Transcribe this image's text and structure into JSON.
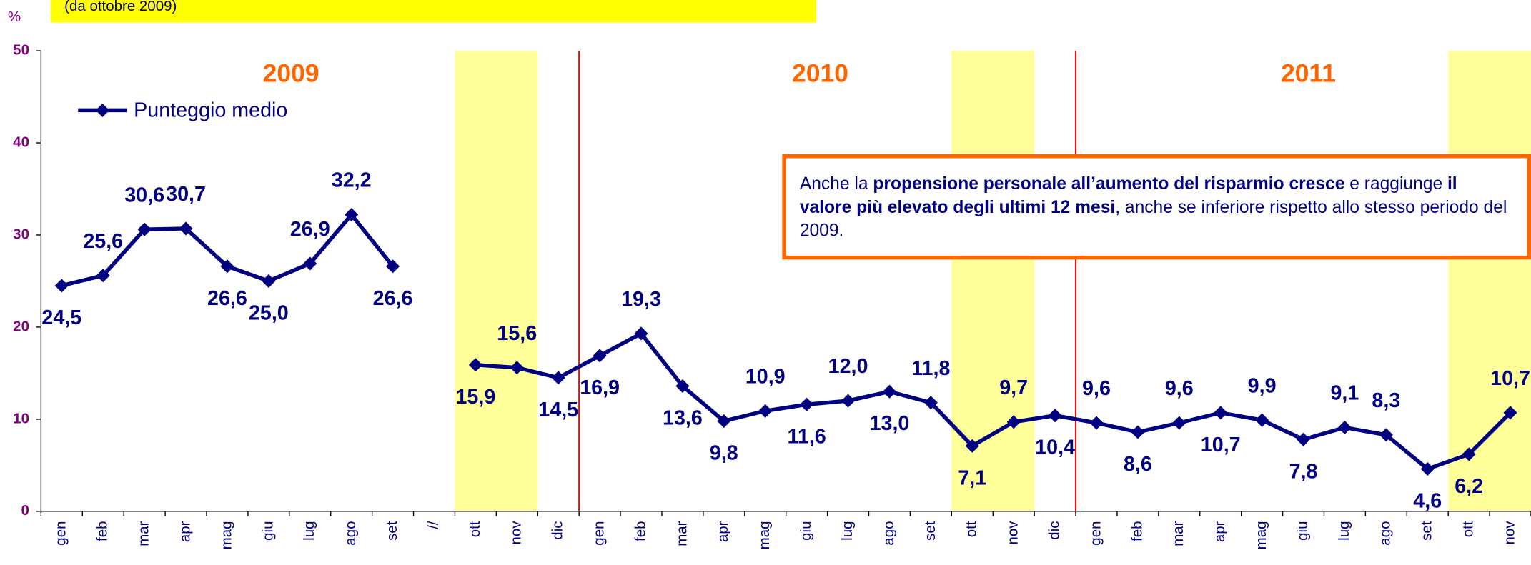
{
  "chart_data": {
    "type": "line",
    "subtitle": "(da ottobre 2009)",
    "y_label": "%",
    "year_labels": [
      "2009",
      "2010",
      "2011"
    ],
    "categories": [
      "gen",
      "feb",
      "mar",
      "apr",
      "mag",
      "giu",
      "lug",
      "ago",
      "set",
      "//",
      "ott",
      "nov",
      "dic",
      "gen",
      "feb",
      "mar",
      "apr",
      "mag",
      "giu",
      "lug",
      "ago",
      "set",
      "ott",
      "nov",
      "dic",
      "gen",
      "feb",
      "mar",
      "apr",
      "mag",
      "giu",
      "lug",
      "ago",
      "set",
      "ott",
      "nov"
    ],
    "series": [
      {
        "name": "Punteggio medio",
        "color": "#000080",
        "values": [
          24.5,
          25.6,
          30.6,
          30.7,
          26.6,
          25.0,
          26.9,
          32.2,
          26.6,
          null,
          15.9,
          15.6,
          14.5,
          16.9,
          19.3,
          13.6,
          9.8,
          10.9,
          11.6,
          12.0,
          13.0,
          11.8,
          7.1,
          9.7,
          10.4,
          9.6,
          8.6,
          9.6,
          10.7,
          9.9,
          7.8,
          9.1,
          8.3,
          4.6,
          6.2,
          10.7
        ],
        "value_labels": [
          "24,5",
          "25,6",
          "30,6",
          "30,7",
          "26,6",
          "25,0",
          "26,9",
          "32,2",
          "26,6",
          null,
          "15,9",
          "15,6",
          "14,5",
          "16,9",
          "19,3",
          "13,6",
          "9,8",
          "10,9",
          "11,6",
          "12,0",
          "13,0",
          "11,8",
          "7,1",
          "9,7",
          "10,4",
          "9,6",
          "8,6",
          "9,6",
          "10,7",
          "9,9",
          "7,8",
          "9,1",
          "8,3",
          "4,6",
          "6,2",
          "10,7"
        ]
      }
    ],
    "ylim": [
      0,
      50
    ],
    "yticks": [
      0,
      10,
      20,
      30,
      40,
      50
    ],
    "annotation": [
      {
        "text": "Anche la ",
        "bold": false
      },
      {
        "text": "propensione personale all’aumento del risparmio cresce",
        "bold": true
      },
      {
        "text": " e raggiunge ",
        "bold": false
      },
      {
        "text": "il valore più elevato degli ultimi 12 mesi",
        "bold": true
      },
      {
        "text": ", anche se inferiore rispetto allo stesso periodo del 2009.",
        "bold": false
      }
    ]
  }
}
